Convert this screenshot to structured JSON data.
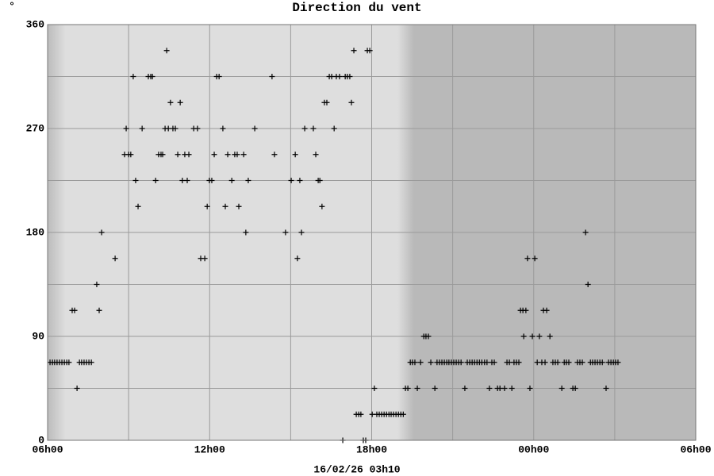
{
  "chart_data": {
    "type": "scatter",
    "title": "Direction du vent",
    "ylabel": "°",
    "xlabel": "16/02/26 03h10",
    "marker": "+",
    "color": "#000000",
    "grid": true,
    "xlim": [
      6,
      30
    ],
    "ylim": [
      0,
      360
    ],
    "xticks": [
      {
        "value": 6,
        "label": "06h00"
      },
      {
        "value": 12,
        "label": "12h00"
      },
      {
        "value": 18,
        "label": "18h00"
      },
      {
        "value": 24,
        "label": "00h00"
      },
      {
        "value": 30,
        "label": "06h00"
      }
    ],
    "x_minor_ticks": [
      9,
      15,
      21,
      27
    ],
    "yticks": [
      0,
      90,
      180,
      270,
      360
    ],
    "y_minor_ticks": [
      45,
      135,
      225,
      315
    ],
    "x": [
      6.09,
      6.18,
      6.26,
      6.35,
      6.44,
      6.53,
      6.62,
      6.71,
      6.79,
      6.91,
      7.0,
      7.09,
      7.18,
      7.26,
      7.35,
      7.44,
      7.53,
      7.62,
      7.82,
      7.91,
      8.0,
      8.5,
      8.85,
      8.91,
      9.0,
      9.08,
      9.17,
      9.26,
      9.35,
      9.5,
      9.73,
      9.82,
      9.88,
      10.0,
      10.11,
      10.2,
      10.26,
      10.35,
      10.41,
      10.47,
      10.55,
      10.64,
      10.73,
      10.82,
      10.91,
      10.99,
      11.08,
      11.17,
      11.23,
      11.41,
      11.55,
      11.67,
      11.82,
      11.91,
      11.99,
      12.08,
      12.17,
      12.26,
      12.35,
      12.49,
      12.58,
      12.67,
      12.82,
      12.93,
      13.02,
      13.08,
      13.26,
      13.34,
      13.43,
      13.67,
      14.31,
      14.4,
      14.81,
      15.02,
      15.17,
      15.25,
      15.34,
      15.4,
      15.52,
      15.84,
      15.93,
      16.02,
      16.08,
      16.16,
      16.25,
      16.34,
      16.43,
      16.52,
      16.61,
      16.69,
      16.81,
      16.93,
      17.02,
      17.1,
      17.19,
      17.25,
      17.34,
      17.43,
      17.52,
      17.6,
      17.69,
      17.78,
      17.84,
      17.93,
      18.02,
      18.1,
      18.19,
      18.28,
      18.37,
      18.46,
      18.55,
      18.64,
      18.72,
      18.81,
      18.9,
      18.99,
      19.08,
      19.17,
      19.25,
      19.34,
      19.43,
      19.51,
      19.6,
      19.69,
      19.81,
      19.93,
      20.01,
      20.1,
      20.19,
      20.34,
      20.42,
      20.51,
      20.6,
      20.69,
      20.78,
      20.86,
      20.95,
      21.04,
      21.13,
      21.22,
      21.31,
      21.45,
      21.54,
      21.63,
      21.72,
      21.81,
      21.9,
      21.99,
      22.08,
      22.18,
      22.27,
      22.36,
      22.45,
      22.54,
      22.66,
      22.75,
      22.92,
      23.01,
      23.1,
      23.19,
      23.27,
      23.36,
      23.45,
      23.51,
      23.6,
      23.63,
      23.71,
      23.77,
      23.86,
      23.95,
      24.04,
      24.13,
      24.21,
      24.3,
      24.36,
      24.42,
      24.48,
      24.6,
      24.71,
      24.8,
      24.89,
      25.04,
      25.13,
      25.21,
      25.3,
      25.45,
      25.54,
      25.62,
      25.71,
      25.8,
      25.92,
      26.01,
      26.1,
      26.18,
      26.27,
      26.36,
      26.45,
      26.54,
      26.68,
      26.77,
      26.86,
      26.95,
      27.03,
      27.12
    ],
    "values": [
      67.5,
      67.5,
      67.5,
      67.5,
      67.5,
      67.5,
      67.5,
      67.5,
      67.5,
      112.5,
      112.5,
      45,
      67.5,
      67.5,
      67.5,
      67.5,
      67.5,
      67.5,
      135,
      112.5,
      180,
      157.5,
      247.5,
      270,
      247.5,
      247.5,
      315,
      225,
      202.5,
      270,
      315,
      315,
      315,
      225,
      247.5,
      247.5,
      247.5,
      270,
      337.5,
      270,
      292.5,
      270,
      270,
      247.5,
      292.5,
      225,
      247.5,
      225,
      247.5,
      270,
      270,
      157.5,
      157.5,
      202.5,
      225,
      225,
      247.5,
      315,
      315,
      270,
      202.5,
      247.5,
      225,
      247.5,
      247.5,
      202.5,
      247.5,
      180,
      225,
      270,
      315,
      247.5,
      180,
      225,
      247.5,
      157.5,
      225,
      180,
      270,
      270,
      247.5,
      225,
      225,
      202.5,
      292.5,
      292.5,
      315,
      315,
      270,
      315,
      315,
      0,
      315,
      315,
      315,
      292.5,
      337.5,
      22.5,
      22.5,
      22.5,
      0,
      0,
      337.5,
      337.5,
      22.5,
      45,
      22.5,
      22.5,
      22.5,
      22.5,
      22.5,
      22.5,
      22.5,
      22.5,
      22.5,
      22.5,
      22.5,
      22.5,
      45,
      45,
      67.5,
      67.5,
      67.5,
      45,
      67.5,
      90,
      90,
      90,
      67.5,
      45,
      67.5,
      67.5,
      67.5,
      67.5,
      67.5,
      67.5,
      67.5,
      67.5,
      67.5,
      67.5,
      67.5,
      45,
      67.5,
      67.5,
      67.5,
      67.5,
      67.5,
      67.5,
      67.5,
      67.5,
      67.5,
      45,
      67.5,
      67.5,
      45,
      45,
      45,
      67.5,
      67.5,
      45,
      67.5,
      67.5,
      67.5,
      112.5,
      112.5,
      90,
      112.5,
      157.5,
      45,
      90,
      157.5,
      67.5,
      90,
      67.5,
      112.5,
      67.5,
      112.5,
      90,
      67.5,
      67.5,
      67.5,
      45,
      67.5,
      67.5,
      67.5,
      45,
      45,
      67.5,
      67.5,
      67.5,
      180,
      135,
      67.5,
      67.5,
      67.5,
      67.5,
      67.5,
      67.5,
      45,
      67.5,
      67.5,
      67.5,
      67.5,
      67.5
    ]
  }
}
